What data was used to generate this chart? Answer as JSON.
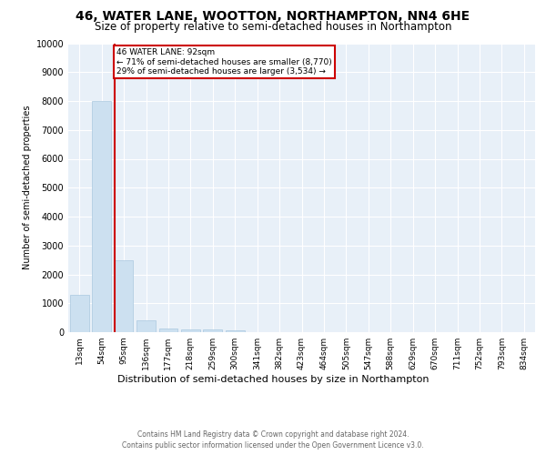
{
  "title_line1": "46, WATER LANE, WOOTTON, NORTHAMPTON, NN4 6HE",
  "title_line2": "Size of property relative to semi-detached houses in Northampton",
  "xlabel": "Distribution of semi-detached houses by size in Northampton",
  "ylabel": "Number of semi-detached properties",
  "footnote": "Contains HM Land Registry data © Crown copyright and database right 2024.\nContains public sector information licensed under the Open Government Licence v3.0.",
  "categories": [
    "13sqm",
    "54sqm",
    "95sqm",
    "136sqm",
    "177sqm",
    "218sqm",
    "259sqm",
    "300sqm",
    "341sqm",
    "382sqm",
    "423sqm",
    "464sqm",
    "505sqm",
    "547sqm",
    "588sqm",
    "629sqm",
    "670sqm",
    "711sqm",
    "752sqm",
    "793sqm",
    "834sqm"
  ],
  "values": [
    1300,
    8000,
    2500,
    400,
    120,
    100,
    80,
    70,
    0,
    0,
    0,
    0,
    0,
    0,
    0,
    0,
    0,
    0,
    0,
    0,
    0
  ],
  "bar_color": "#cce0f0",
  "bar_edge_color": "#aac8e0",
  "vline_x_index": 2,
  "property_label": "46 WATER LANE: 92sqm",
  "annotation_line1": "← 71% of semi-detached houses are smaller (8,770)",
  "annotation_line2": "29% of semi-detached houses are larger (3,534) →",
  "annotation_box_color": "#ffffff",
  "annotation_box_edge": "#cc0000",
  "vline_color": "#cc0000",
  "ylim": [
    0,
    10000
  ],
  "yticks": [
    0,
    1000,
    2000,
    3000,
    4000,
    5000,
    6000,
    7000,
    8000,
    9000,
    10000
  ],
  "plot_bg_color": "#e8f0f8",
  "title_fontsize": 10,
  "subtitle_fontsize": 8.5,
  "ylabel_fontsize": 7,
  "xlabel_fontsize": 8,
  "tick_fontsize": 6.5,
  "annot_fontsize": 6.5,
  "footnote_fontsize": 5.5
}
